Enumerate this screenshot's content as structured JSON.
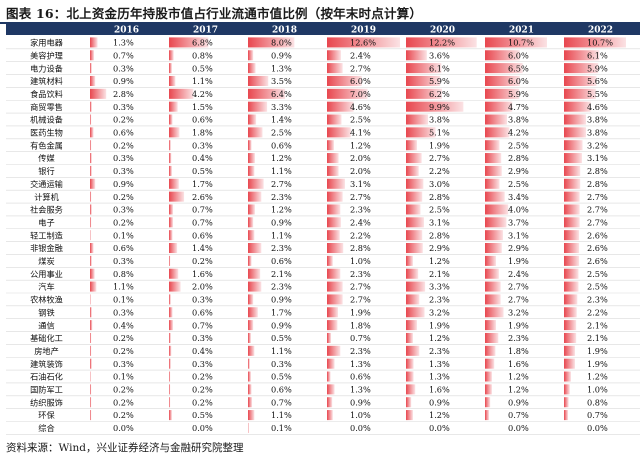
{
  "title": "图表 16：北上资金历年持股市值占行业流通市值比例（按年末时点计算）",
  "source": "资料来源：Wind，兴业证券经济与金融研究院整理",
  "colors": {
    "header_bg": "#1f3864",
    "title_rule": "#1f3864",
    "bar_strong": "#e8474f",
    "bar_light": "#fbe2e4",
    "row_border": "#d9d9d9"
  },
  "chart_data": {
    "type": "table",
    "title": "图表 16：北上资金历年持股市值占行业流通市值比例（按年末时点计算）",
    "xlabel": "",
    "ylabel": "",
    "unit": "%",
    "columns": [
      "2016",
      "2017",
      "2018",
      "2019",
      "2020",
      "2021",
      "2022"
    ],
    "categories": [
      "家用电器",
      "美容护理",
      "电力设备",
      "建筑材料",
      "食品饮料",
      "商贸零售",
      "机械设备",
      "医药生物",
      "有色金属",
      "传媒",
      "银行",
      "交通运输",
      "计算机",
      "社会服务",
      "电子",
      "轻工制造",
      "非银金融",
      "煤炭",
      "公用事业",
      "汽车",
      "农林牧渔",
      "钢铁",
      "通信",
      "基础化工",
      "房地产",
      "建筑装饰",
      "石油石化",
      "国防军工",
      "纺织服饰",
      "环保",
      "综合"
    ],
    "values": [
      [
        1.3,
        6.8,
        8.0,
        12.6,
        12.2,
        10.7,
        10.7
      ],
      [
        0.7,
        0.8,
        0.9,
        2.4,
        3.6,
        6.0,
        6.1
      ],
      [
        0.3,
        0.5,
        1.3,
        2.7,
        6.1,
        6.5,
        5.9
      ],
      [
        0.9,
        1.1,
        3.5,
        6.0,
        5.9,
        6.0,
        5.6
      ],
      [
        2.8,
        4.2,
        6.4,
        7.0,
        6.2,
        5.9,
        5.5
      ],
      [
        0.3,
        1.5,
        3.3,
        4.6,
        9.9,
        4.7,
        4.6
      ],
      [
        0.2,
        0.6,
        1.4,
        2.5,
        3.8,
        3.8,
        3.8
      ],
      [
        0.6,
        1.8,
        2.5,
        4.1,
        5.1,
        4.2,
        3.8
      ],
      [
        0.2,
        0.3,
        0.6,
        1.2,
        1.9,
        2.5,
        3.2
      ],
      [
        0.3,
        0.4,
        1.2,
        2.0,
        2.7,
        2.8,
        3.1
      ],
      [
        0.3,
        0.5,
        1.1,
        2.0,
        2.2,
        2.9,
        2.8
      ],
      [
        0.9,
        1.7,
        2.7,
        3.1,
        3.0,
        2.5,
        2.8
      ],
      [
        0.2,
        2.6,
        2.3,
        2.7,
        2.8,
        3.4,
        2.7
      ],
      [
        0.3,
        0.7,
        1.2,
        2.3,
        2.5,
        4.0,
        2.7
      ],
      [
        0.2,
        0.7,
        0.9,
        2.4,
        3.1,
        3.7,
        2.7
      ],
      [
        0.1,
        0.6,
        1.1,
        2.2,
        2.8,
        3.1,
        2.6
      ],
      [
        0.6,
        1.4,
        2.3,
        2.8,
        2.9,
        2.9,
        2.6
      ],
      [
        0.3,
        0.2,
        0.6,
        1.0,
        1.2,
        1.9,
        2.6
      ],
      [
        0.8,
        1.6,
        2.1,
        2.3,
        2.1,
        2.4,
        2.5
      ],
      [
        1.1,
        2.0,
        2.3,
        2.7,
        3.3,
        2.7,
        2.5
      ],
      [
        0.1,
        0.3,
        0.9,
        2.7,
        2.3,
        2.7,
        2.3
      ],
      [
        0.3,
        0.6,
        1.7,
        1.9,
        3.2,
        3.2,
        2.2
      ],
      [
        0.4,
        0.7,
        0.9,
        1.8,
        1.9,
        1.9,
        2.1
      ],
      [
        0.2,
        0.3,
        0.5,
        0.7,
        1.2,
        2.3,
        2.1
      ],
      [
        0.2,
        0.4,
        1.1,
        2.3,
        2.3,
        1.8,
        1.9
      ],
      [
        0.3,
        0.3,
        0.3,
        1.3,
        1.3,
        1.6,
        1.9
      ],
      [
        0.1,
        0.2,
        0.5,
        0.6,
        1.3,
        1.2,
        1.2
      ],
      [
        0.2,
        0.2,
        0.6,
        1.3,
        1.6,
        1.2,
        1.0
      ],
      [
        0.2,
        0.2,
        0.7,
        0.9,
        0.9,
        0.9,
        0.8
      ],
      [
        0.2,
        0.5,
        1.1,
        1.0,
        1.2,
        0.7,
        0.7
      ],
      [
        0.0,
        0.0,
        0.1,
        0.0,
        0.0,
        0.0,
        0.0
      ]
    ],
    "value_labels": [
      [
        "1.3%",
        "6.8%",
        "8.0%",
        "12.6%",
        "12.2%",
        "10.7%",
        "10.7%"
      ],
      [
        "0.7%",
        "0.8%",
        "0.9%",
        "2.4%",
        "3.6%",
        "6.0%",
        "6.1%"
      ],
      [
        "0.3%",
        "0.5%",
        "1.3%",
        "2.7%",
        "6.1%",
        "6.5%",
        "5.9%"
      ],
      [
        "0.9%",
        "1.1%",
        "3.5%",
        "6.0%",
        "5.9%",
        "6.0%",
        "5.6%"
      ],
      [
        "2.8%",
        "4.2%",
        "6.4%",
        "7.0%",
        "6.2%",
        "5.9%",
        "5.5%"
      ],
      [
        "0.3%",
        "1.5%",
        "3.3%",
        "4.6%",
        "9.9%",
        "4.7%",
        "4.6%"
      ],
      [
        "0.2%",
        "0.6%",
        "1.4%",
        "2.5%",
        "3.8%",
        "3.8%",
        "3.8%"
      ],
      [
        "0.6%",
        "1.8%",
        "2.5%",
        "4.1%",
        "5.1%",
        "4.2%",
        "3.8%"
      ],
      [
        "0.2%",
        "0.3%",
        "0.6%",
        "1.2%",
        "1.9%",
        "2.5%",
        "3.2%"
      ],
      [
        "0.3%",
        "0.4%",
        "1.2%",
        "2.0%",
        "2.7%",
        "2.8%",
        "3.1%"
      ],
      [
        "0.3%",
        "0.5%",
        "1.1%",
        "2.0%",
        "2.2%",
        "2.9%",
        "2.8%"
      ],
      [
        "0.9%",
        "1.7%",
        "2.7%",
        "3.1%",
        "3.0%",
        "2.5%",
        "2.8%"
      ],
      [
        "0.2%",
        "2.6%",
        "2.3%",
        "2.7%",
        "2.8%",
        "3.4%",
        "2.7%"
      ],
      [
        "0.3%",
        "0.7%",
        "1.2%",
        "2.3%",
        "2.5%",
        "4.0%",
        "2.7%"
      ],
      [
        "0.2%",
        "0.7%",
        "0.9%",
        "2.4%",
        "3.1%",
        "3.7%",
        "2.7%"
      ],
      [
        "0.1%",
        "0.6%",
        "1.1%",
        "2.2%",
        "2.8%",
        "3.1%",
        "2.6%"
      ],
      [
        "0.6%",
        "1.4%",
        "2.3%",
        "2.8%",
        "2.9%",
        "2.9%",
        "2.6%"
      ],
      [
        "0.3%",
        "0.2%",
        "0.6%",
        "1.0%",
        "1.2%",
        "1.9%",
        "2.6%"
      ],
      [
        "0.8%",
        "1.6%",
        "2.1%",
        "2.3%",
        "2.1%",
        "2.4%",
        "2.5%"
      ],
      [
        "1.1%",
        "2.0%",
        "2.3%",
        "2.7%",
        "3.3%",
        "2.7%",
        "2.5%"
      ],
      [
        "0.1%",
        "0.3%",
        "0.9%",
        "2.7%",
        "2.3%",
        "2.7%",
        "2.3%"
      ],
      [
        "0.3%",
        "0.6%",
        "1.7%",
        "1.9%",
        "3.2%",
        "3.2%",
        "2.2%"
      ],
      [
        "0.4%",
        "0.7%",
        "0.9%",
        "1.8%",
        "1.9%",
        "1.9%",
        "2.1%"
      ],
      [
        "0.2%",
        "0.3%",
        "0.5%",
        "0.7%",
        "1.2%",
        "2.3%",
        "2.1%"
      ],
      [
        "0.2%",
        "0.4%",
        "1.1%",
        "2.3%",
        "2.3%",
        "1.8%",
        "1.9%"
      ],
      [
        "0.3%",
        "0.3%",
        "0.3%",
        "1.3%",
        "1.3%",
        "1.6%",
        "1.9%"
      ],
      [
        "0.1%",
        "0.2%",
        "0.5%",
        "0.6%",
        "1.3%",
        "1.2%",
        "1.2%"
      ],
      [
        "0.2%",
        "0.2%",
        "0.6%",
        "1.3%",
        "1.6%",
        "1.2%",
        "1.0%"
      ],
      [
        "0.2%",
        "0.2%",
        "0.7%",
        "0.9%",
        "0.9%",
        "0.9%",
        "0.8%"
      ],
      [
        "0.2%",
        "0.5%",
        "1.1%",
        "1.0%",
        "1.2%",
        "0.7%",
        "0.7%"
      ],
      [
        "0.0%",
        "0.0%",
        "0.1%",
        "0.0%",
        "0.0%",
        "0.0%",
        "0.0%"
      ]
    ]
  }
}
